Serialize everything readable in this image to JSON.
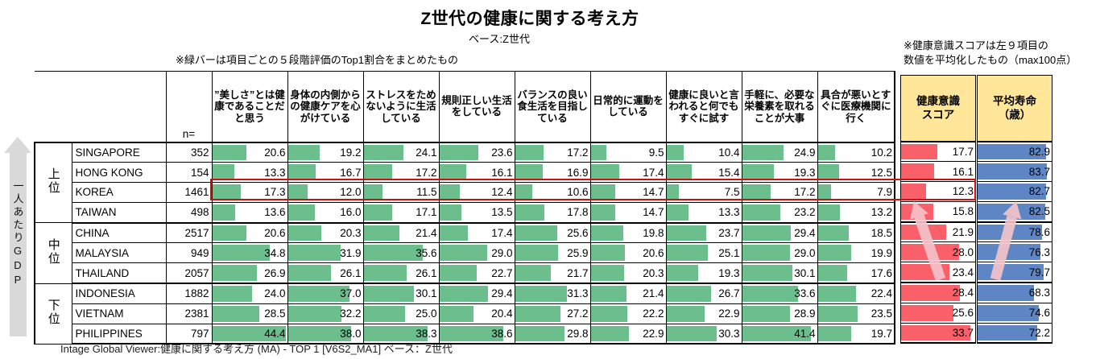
{
  "title": "Z世代の健康に関する考え方",
  "subtitle": "ベース:Z世代",
  "note_left": "※緑バーは項目ごとの５段階評価のTop1割合をまとめたもの",
  "note_right": "※健康意識スコアは左９項目の\n数値を平均化したもの（max100点）",
  "gdp_axis_label": "一人あたりGDP",
  "footer": "Intage Global Viewer:健康に関する考え方 (MA) - TOP 1 [V6S2_MA1]  ベース：Z世代",
  "colors": {
    "bar_green": "#6dbe8d",
    "bar_red": "#f9606a",
    "bar_blue": "#5e86c4",
    "header_yellow": "#ffe699",
    "highlight_red": "#cc1111",
    "pink_arrow": "#f6c3cb",
    "gray_arrow": "#d9d9d9"
  },
  "chart_data": {
    "type": "table",
    "n_header": "n=",
    "item_headers": [
      "”美しさ”とは健康であることだと思う",
      "身体の内側からの健康ケアを心がけている",
      "ストレスをためないように生活している",
      "規則正しい生活をしている",
      "バランスの良い食生活を目指している",
      "日常的に運動をしている",
      "健康に良いと言われると何でもすぐに試す",
      "手軽に、必要な栄養素を取れることが大事",
      "具合が悪いとすぐに医療機関に行く"
    ],
    "score_header": "健康意識\nスコア",
    "lifespan_header": "平均寿命\n（歳）",
    "groups": [
      {
        "label": "上位",
        "count": 4
      },
      {
        "label": "中位",
        "count": 3
      },
      {
        "label": "下位",
        "count": 3
      }
    ],
    "rows": [
      {
        "country": "SINGAPORE",
        "n": 352,
        "values": [
          20.6,
          19.2,
          24.1,
          23.6,
          17.2,
          9.5,
          10.4,
          24.9,
          10.2
        ],
        "score": 17.7,
        "lifespan": 82.9
      },
      {
        "country": "HONG KONG",
        "n": 154,
        "values": [
          13.3,
          16.7,
          17.2,
          16.1,
          16.9,
          17.4,
          15.4,
          19.3,
          12.5
        ],
        "score": 16.1,
        "lifespan": 83.7
      },
      {
        "country": "KOREA",
        "n": 1461,
        "values": [
          17.3,
          12.0,
          11.5,
          12.4,
          10.6,
          14.7,
          7.5,
          17.2,
          7.9
        ],
        "score": 12.3,
        "lifespan": 82.7
      },
      {
        "country": "TAIWAN",
        "n": 498,
        "values": [
          13.6,
          16.0,
          17.1,
          13.5,
          17.8,
          14.7,
          13.3,
          23.2,
          13.2
        ],
        "score": 15.8,
        "lifespan": 82.5
      },
      {
        "country": "CHINA",
        "n": 2517,
        "values": [
          20.6,
          20.3,
          21.4,
          17.4,
          25.6,
          19.8,
          23.7,
          29.4,
          18.5
        ],
        "score": 21.9,
        "lifespan": 78.6
      },
      {
        "country": "MALAYSIA",
        "n": 949,
        "values": [
          34.8,
          31.9,
          35.6,
          29.0,
          25.9,
          20.6,
          25.1,
          29.0,
          19.9
        ],
        "score": 28.0,
        "lifespan": 76.3
      },
      {
        "country": "THAILAND",
        "n": 2057,
        "values": [
          26.9,
          26.1,
          26.1,
          22.7,
          21.7,
          20.3,
          19.3,
          30.1,
          17.6
        ],
        "score": 23.4,
        "lifespan": 79.7
      },
      {
        "country": "INDONESIA",
        "n": 1882,
        "values": [
          24.0,
          37.0,
          30.1,
          29.4,
          31.3,
          21.4,
          26.7,
          33.6,
          22.4
        ],
        "score": 28.4,
        "lifespan": 68.3
      },
      {
        "country": "VIETNAM",
        "n": 2381,
        "values": [
          28.5,
          32.2,
          25.0,
          20.4,
          27.2,
          22.2,
          22.9,
          28.9,
          23.5
        ],
        "score": 25.6,
        "lifespan": 74.6
      },
      {
        "country": "PHILIPPINES",
        "n": 797,
        "values": [
          44.4,
          38.0,
          38.3,
          38.6,
          29.8,
          22.9,
          30.3,
          41.4,
          19.7
        ],
        "score": 33.7,
        "lifespan": 72.2
      }
    ],
    "bar_axis_max": {
      "items": 45,
      "score": 36,
      "lifespan": 90
    },
    "highlighted_country": "KOREA"
  }
}
